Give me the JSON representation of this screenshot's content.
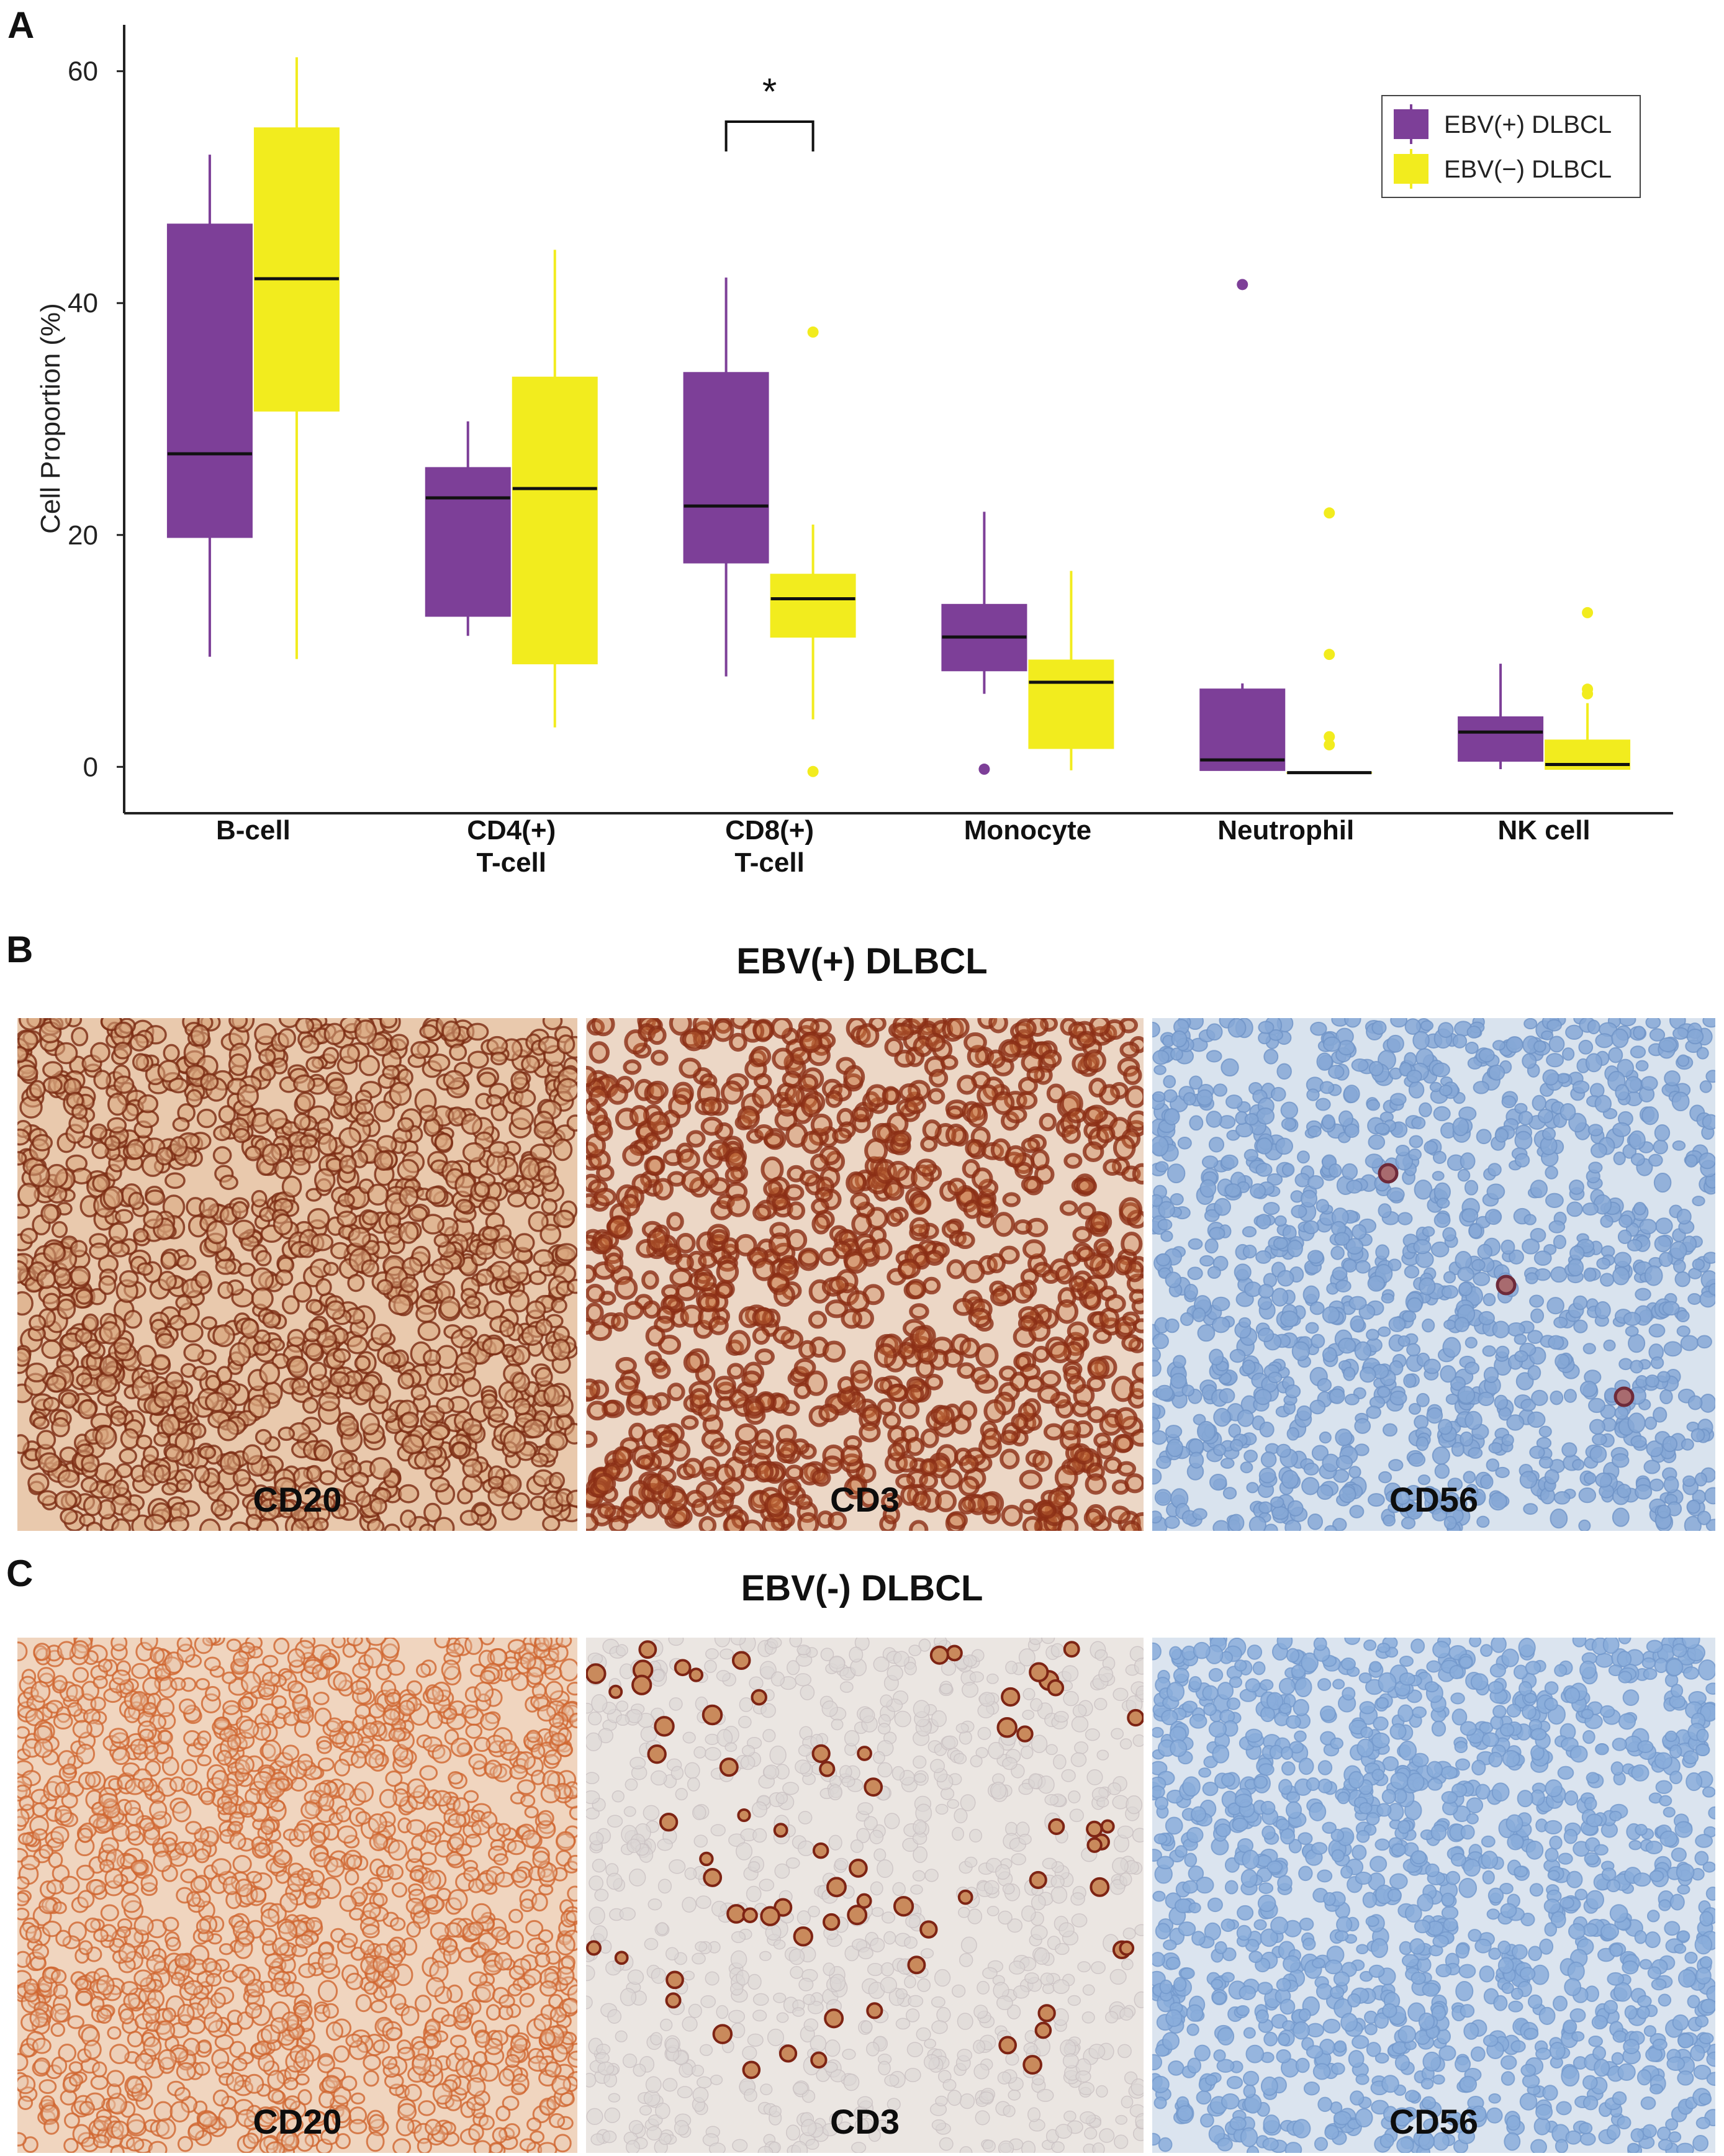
{
  "panels": {
    "a": {
      "letter": "A"
    },
    "b": {
      "letter": "B",
      "title": "EBV(+) DLBCL",
      "images": [
        {
          "stain": "CD20",
          "style": "dense-membrane-brown"
        },
        {
          "stain": "CD3",
          "style": "dense-ring-brown"
        },
        {
          "stain": "CD56",
          "style": "hematoxylin-blue-sparse-positive"
        }
      ]
    },
    "c": {
      "letter": "C",
      "title": "EBV(-) DLBCL",
      "images": [
        {
          "stain": "CD20",
          "style": "diffuse-orange-membrane"
        },
        {
          "stain": "CD3",
          "style": "scattered-brown-cells"
        },
        {
          "stain": "CD56",
          "style": "hematoxylin-blue-negative"
        }
      ]
    }
  },
  "chart_data": {
    "type": "boxplot",
    "ylabel": "Cell Proportion (%)",
    "ylim": [
      -4,
      64
    ],
    "yticks": [
      0,
      20,
      40,
      60
    ],
    "categories": [
      {
        "name": "B-cell",
        "label_lines": [
          "B-cell"
        ]
      },
      {
        "name": "CD4(+) T-cell",
        "label_lines": [
          "CD4(+)",
          "T-cell"
        ]
      },
      {
        "name": "CD8(+) T-cell",
        "label_lines": [
          "CD8(+)",
          "T-cell"
        ]
      },
      {
        "name": "Monocyte",
        "label_lines": [
          "Monocyte"
        ]
      },
      {
        "name": "Neutrophil",
        "label_lines": [
          "Neutrophil"
        ]
      },
      {
        "name": "NK cell",
        "label_lines": [
          "NK cell"
        ]
      }
    ],
    "series": [
      {
        "name": "EBV(+) DLBCL",
        "color": "#7d3f98",
        "boxes": [
          {
            "whisker_low": 9.5,
            "q1": 19.8,
            "median": 27.0,
            "q3": 46.8,
            "whisker_high": 52.8,
            "outliers": []
          },
          {
            "whisker_low": 11.3,
            "q1": 13.0,
            "median": 23.2,
            "q3": 25.8,
            "whisker_high": 29.8,
            "outliers": []
          },
          {
            "whisker_low": 7.8,
            "q1": 17.6,
            "median": 22.5,
            "q3": 34.0,
            "whisker_high": 42.2,
            "outliers": []
          },
          {
            "whisker_low": 6.3,
            "q1": 8.3,
            "median": 11.2,
            "q3": 14.0,
            "whisker_high": 22.0,
            "outliers": [
              -0.2
            ]
          },
          {
            "whisker_low": -0.3,
            "q1": -0.3,
            "median": 0.6,
            "q3": 6.7,
            "whisker_high": 7.2,
            "outliers": [
              41.6
            ]
          },
          {
            "whisker_low": -0.2,
            "q1": 0.5,
            "median": 3.0,
            "q3": 4.3,
            "whisker_high": 8.9,
            "outliers": []
          }
        ]
      },
      {
        "name": "EBV(−) DLBCL",
        "color": "#f2ec1e",
        "boxes": [
          {
            "whisker_low": 9.3,
            "q1": 30.7,
            "median": 42.1,
            "q3": 55.1,
            "whisker_high": 61.2,
            "outliers": []
          },
          {
            "whisker_low": 3.4,
            "q1": 8.9,
            "median": 24.0,
            "q3": 33.6,
            "whisker_high": 44.6,
            "outliers": []
          },
          {
            "whisker_low": 4.1,
            "q1": 11.2,
            "median": 14.5,
            "q3": 16.6,
            "whisker_high": 20.9,
            "outliers": [
              37.5,
              -0.4
            ]
          },
          {
            "whisker_low": -0.3,
            "q1": 1.6,
            "median": 7.3,
            "q3": 9.2,
            "whisker_high": 16.9,
            "outliers": []
          },
          {
            "whisker_low": -0.5,
            "q1": -0.5,
            "median": -0.5,
            "q3": -0.5,
            "whisker_high": -0.5,
            "outliers": [
              21.9,
              9.7,
              2.6,
              1.9
            ]
          },
          {
            "whisker_low": -0.2,
            "q1": -0.2,
            "median": 0.2,
            "q3": 2.3,
            "whisker_high": 5.5,
            "outliers": [
              13.3,
              6.7,
              6.3
            ]
          }
        ]
      }
    ],
    "significance": [
      {
        "between": "CD8(+) T-cell",
        "label": "*"
      }
    ],
    "legend_position": "top-right",
    "grid": false
  }
}
